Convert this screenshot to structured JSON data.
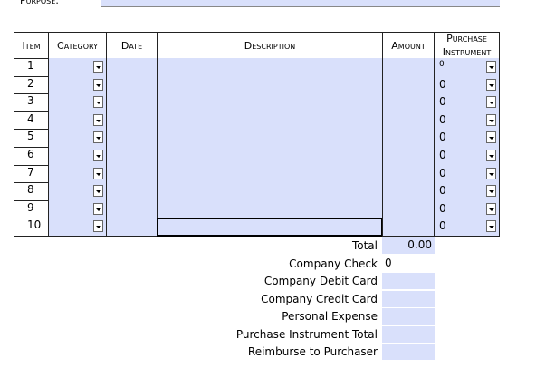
{
  "purpose_label": "Purpose:",
  "table": {
    "headers": [
      "Item",
      "Category",
      "Date",
      "Description",
      "Amount",
      [
        "Purchase",
        "Instrument"
      ]
    ],
    "rows": [
      {
        "item": "1",
        "instrument": "0"
      },
      {
        "item": "2",
        "instrument": "0"
      },
      {
        "item": "3",
        "instrument": "0"
      },
      {
        "item": "4",
        "instrument": "0"
      },
      {
        "item": "5",
        "instrument": "0"
      },
      {
        "item": "6",
        "instrument": "0"
      },
      {
        "item": "7",
        "instrument": "0"
      },
      {
        "item": "8",
        "instrument": "0"
      },
      {
        "item": "9",
        "instrument": "0"
      },
      {
        "item": "10",
        "instrument": "0"
      }
    ]
  },
  "summary": [
    {
      "label": "Total",
      "value": "0.00"
    },
    {
      "label": "Company Check",
      "value": "0"
    },
    {
      "label": "Company Debit Card"
    },
    {
      "label": "Company Credit Card"
    },
    {
      "label": "Personal Expense"
    },
    {
      "label": "Purchase Instrument Total"
    },
    {
      "label": "Reimburse to Purchaser"
    }
  ]
}
